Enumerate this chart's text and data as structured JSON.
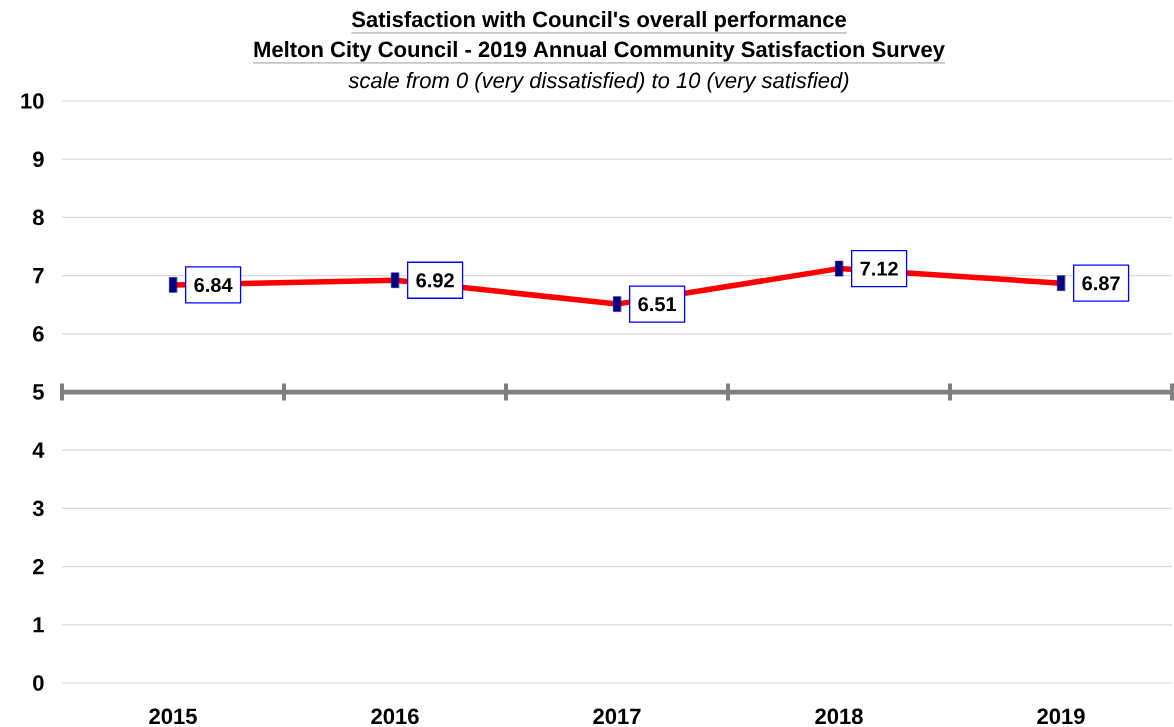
{
  "chart_data": {
    "type": "line",
    "title": "Satisfaction with Council's overall performance",
    "subtitle": "Melton City Council - 2019 Annual Community Satisfaction Survey",
    "annotations": [
      "scale from 0 (very dissatisfied) to 10 (very satisfied)"
    ],
    "categories": [
      "2015",
      "2016",
      "2017",
      "2018",
      "2019"
    ],
    "series": [
      {
        "color": "#ff0000",
        "values": [
          6.84,
          6.92,
          6.51,
          7.12,
          6.87
        ]
      }
    ],
    "ylim": [
      0,
      10
    ],
    "yticks": [
      0,
      1,
      2,
      3,
      4,
      5,
      6,
      7,
      8,
      9,
      10
    ],
    "grid": "y",
    "marker": "square",
    "line_style": "solid",
    "data_labels": true,
    "ref_lines": [
      {
        "axis": "y",
        "value": 5,
        "color": "#808080"
      }
    ]
  }
}
